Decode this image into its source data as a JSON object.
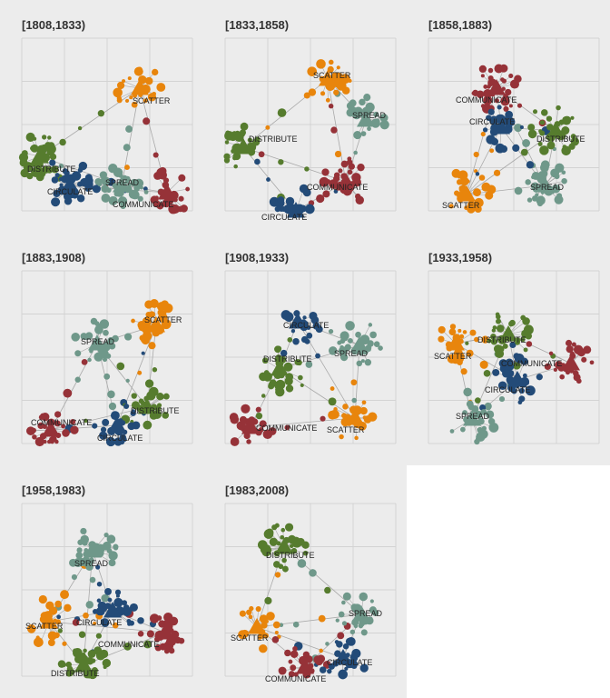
{
  "colors": {
    "SCATTER": "#e8850c",
    "SPREAD": "#6f988a",
    "DISTRIBUTE": "#567c2e",
    "CIRCULATE": "#234b78",
    "COMMUNICATE": "#963238",
    "edge": "#a9a9a9",
    "grid": "#d3d3d3",
    "panel_bg": "#ececec"
  },
  "panels": [
    {
      "title": "[1808,1833)",
      "hubs": [
        {
          "word": "SCATTER",
          "label": "SCATTER",
          "x": 130,
          "y": 55,
          "lx": 122,
          "ly": 72
        },
        {
          "word": "DISTRIBUTE",
          "label": "DISTRIBUTE",
          "x": 20,
          "y": 130,
          "lx": 6,
          "ly": 147
        },
        {
          "word": "CIRCULATE",
          "label": "CIRCULATE",
          "x": 53,
          "y": 162,
          "lx": 28,
          "ly": 172
        },
        {
          "word": "SPREAD",
          "label": "SPREAD",
          "x": 110,
          "y": 162,
          "lx": 92,
          "ly": 162
        },
        {
          "word": "COMMUNICATE",
          "label": "COMMUNICATE",
          "x": 160,
          "y": 170,
          "lx": 100,
          "ly": 186
        }
      ]
    },
    {
      "title": "[1833,1858)",
      "hubs": [
        {
          "word": "SCATTER",
          "label": "SCATTER",
          "x": 113,
          "y": 45,
          "lx": 97,
          "ly": 44
        },
        {
          "word": "SPREAD",
          "label": "SPREAD",
          "x": 155,
          "y": 90,
          "lx": 140,
          "ly": 88
        },
        {
          "word": "DISTRIBUTE",
          "label": "DISTRIBUTE",
          "x": 20,
          "y": 120,
          "lx": 26,
          "ly": 114
        },
        {
          "word": "COMMUNICATE",
          "label": "COMMUNICATE",
          "x": 133,
          "y": 158,
          "lx": 90,
          "ly": 167
        },
        {
          "word": "CIRCULATE",
          "label": "CIRCULATE",
          "x": 78,
          "y": 190,
          "lx": 40,
          "ly": 200
        }
      ]
    },
    {
      "title": "[1858,1883)",
      "hubs": [
        {
          "word": "COMMUNICATE",
          "label": "COMMUNICATE",
          "x": 75,
          "y": 55,
          "lx": 30,
          "ly": 71
        },
        {
          "word": "CIRCULATE",
          "label": "CIRCULATE",
          "x": 80,
          "y": 98,
          "lx": 45,
          "ly": 95
        },
        {
          "word": "DISTRIBUTE",
          "label": "DISTRIBUTE",
          "x": 140,
          "y": 102,
          "lx": 119,
          "ly": 114
        },
        {
          "word": "SPREAD",
          "label": "SPREAD",
          "x": 128,
          "y": 162,
          "lx": 112,
          "ly": 167
        },
        {
          "word": "SCATTER",
          "label": "SCATTER",
          "x": 42,
          "y": 172,
          "lx": 15,
          "ly": 187
        }
      ]
    },
    {
      "title": "[1883,1908)",
      "hubs": [
        {
          "word": "SCATTER",
          "label": "SCATTER",
          "x": 148,
          "y": 60,
          "lx": 135,
          "ly": 57
        },
        {
          "word": "SPREAD",
          "label": "SPREAD",
          "x": 83,
          "y": 80,
          "lx": 65,
          "ly": 81
        },
        {
          "word": "DISTRIBUTE",
          "label": "DISTRIBUTE",
          "x": 138,
          "y": 150,
          "lx": 120,
          "ly": 157
        },
        {
          "word": "CIRCULATE",
          "label": "CIRCULATE",
          "x": 105,
          "y": 170,
          "lx": 83,
          "ly": 187
        },
        {
          "word": "COMMUNICATE",
          "label": "COMMUNICATE",
          "x": 32,
          "y": 175,
          "lx": 10,
          "ly": 170
        }
      ]
    },
    {
      "title": "[1908,1933)",
      "hubs": [
        {
          "word": "CIRCULATE",
          "label": "CIRCULATE",
          "x": 80,
          "y": 56,
          "lx": 64,
          "ly": 63
        },
        {
          "word": "SPREAD",
          "label": "SPREAD",
          "x": 148,
          "y": 82,
          "lx": 120,
          "ly": 94
        },
        {
          "word": "DISTRIBUTE",
          "label": "DISTRIBUTE",
          "x": 60,
          "y": 108,
          "lx": 42,
          "ly": 100
        },
        {
          "word": "SCATTER",
          "label": "SCATTER",
          "x": 143,
          "y": 162,
          "lx": 112,
          "ly": 178
        },
        {
          "word": "COMMUNICATE",
          "label": "COMMUNICATE",
          "x": 28,
          "y": 172,
          "lx": 34,
          "ly": 176
        }
      ]
    },
    {
      "title": "[1933,1958)",
      "hubs": [
        {
          "word": "DISTRIBUTE",
          "label": "DISTRIBUTE",
          "x": 88,
          "y": 70,
          "lx": 54,
          "ly": 79
        },
        {
          "word": "SCATTER",
          "label": "SCATTER",
          "x": 30,
          "y": 80,
          "lx": 6,
          "ly": 97
        },
        {
          "word": "COMMUNICATE",
          "label": "COMMUNICATE",
          "x": 157,
          "y": 102,
          "lx": 80,
          "ly": 105
        },
        {
          "word": "CIRCULATE",
          "label": "CIRCULATE",
          "x": 98,
          "y": 120,
          "lx": 62,
          "ly": 134
        },
        {
          "word": "SPREAD",
          "label": "SPREAD",
          "x": 48,
          "y": 163,
          "lx": 30,
          "ly": 163
        }
      ]
    },
    {
      "title": "[1958,1983)",
      "hubs": [
        {
          "word": "SPREAD",
          "label": "SPREAD",
          "x": 78,
          "y": 52,
          "lx": 58,
          "ly": 69
        },
        {
          "word": "CIRCULATE",
          "label": "CIRCULATE",
          "x": 100,
          "y": 118,
          "lx": 60,
          "ly": 134
        },
        {
          "word": "SCATTER",
          "label": "SCATTER",
          "x": 30,
          "y": 130,
          "lx": 4,
          "ly": 138
        },
        {
          "word": "COMMUNICATE",
          "label": "COMMUNICATE",
          "x": 158,
          "y": 142,
          "lx": 84,
          "ly": 158
        },
        {
          "word": "DISTRIBUTE",
          "label": "DISTRIBUTE",
          "x": 68,
          "y": 178,
          "lx": 32,
          "ly": 190
        }
      ]
    },
    {
      "title": "[1983,2008)",
      "hubs": [
        {
          "word": "DISTRIBUTE",
          "label": "DISTRIBUTE",
          "x": 65,
          "y": 48,
          "lx": 45,
          "ly": 60
        },
        {
          "word": "SPREAD",
          "label": "SPREAD",
          "x": 150,
          "y": 122,
          "lx": 136,
          "ly": 124
        },
        {
          "word": "SCATTER",
          "label": "SCATTER",
          "x": 35,
          "y": 136,
          "lx": 6,
          "ly": 151
        },
        {
          "word": "CIRCULATE",
          "label": "CIRCULATE",
          "x": 130,
          "y": 170,
          "lx": 112,
          "ly": 178
        },
        {
          "word": "COMMUNICATE",
          "label": "COMMUNICATE",
          "x": 88,
          "y": 180,
          "lx": 44,
          "ly": 196
        }
      ]
    }
  ]
}
